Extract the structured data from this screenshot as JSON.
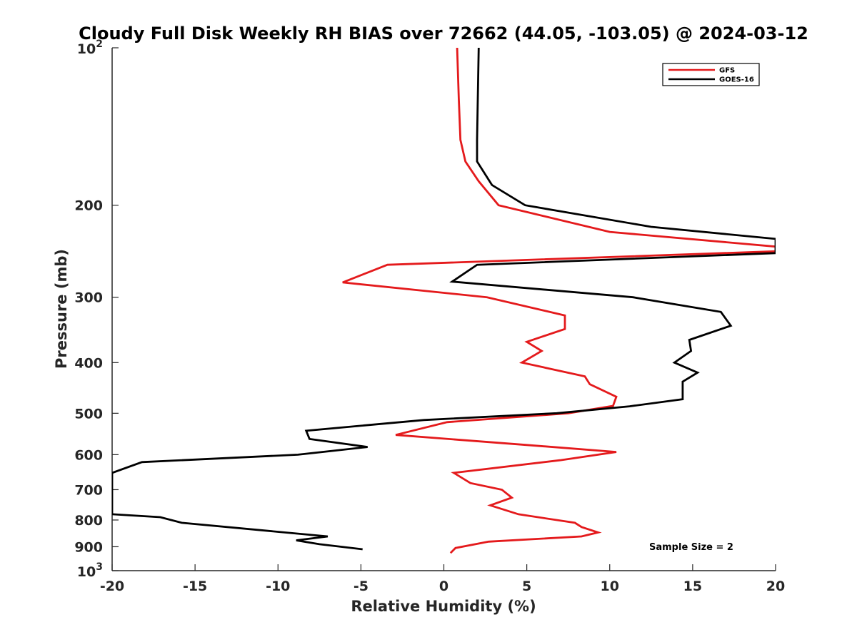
{
  "chart_data": {
    "type": "line",
    "title": "Cloudy Full Disk Weekly RH BIAS over 72662 (44.05, -103.05) @ 2024-03-12",
    "xlabel": "Relative Humidity (%)",
    "ylabel": "Pressure (mb)",
    "xlim": [
      -20,
      20
    ],
    "ylim": [
      100,
      1000
    ],
    "y_scale": "log",
    "y_reversed": true,
    "grid": false,
    "legend_position": "top-right",
    "x_ticks": [
      "-20",
      "-15",
      "-10",
      "-5",
      "0",
      "5",
      "10",
      "15",
      "20"
    ],
    "y_ticks": [
      {
        "value": 100,
        "base": "10",
        "exp": "2"
      },
      {
        "value": 200,
        "label": "200"
      },
      {
        "value": 300,
        "label": "300"
      },
      {
        "value": 400,
        "label": "400"
      },
      {
        "value": 500,
        "label": "500"
      },
      {
        "value": 600,
        "label": "600"
      },
      {
        "value": 700,
        "label": "700"
      },
      {
        "value": 800,
        "label": "800"
      },
      {
        "value": 900,
        "label": "900"
      },
      {
        "value": 1000,
        "base": "10",
        "exp": "3"
      }
    ],
    "annotation": "Sample Size = 2",
    "series": [
      {
        "name": "GFS",
        "color": "#e41a1c",
        "points": [
          [
            0.8,
            100
          ],
          [
            0.9,
            125
          ],
          [
            1.0,
            150
          ],
          [
            1.3,
            165
          ],
          [
            2.1,
            180
          ],
          [
            3.3,
            200
          ],
          [
            10.0,
            225
          ],
          [
            20.0,
            240
          ],
          [
            20.0,
            245
          ],
          [
            -3.4,
            260
          ],
          [
            -6.1,
            281
          ],
          [
            2.6,
            300
          ],
          [
            7.3,
            325
          ],
          [
            7.3,
            345
          ],
          [
            5.0,
            365
          ],
          [
            5.9,
            380
          ],
          [
            4.7,
            400
          ],
          [
            8.5,
            425
          ],
          [
            8.8,
            440
          ],
          [
            10.4,
            465
          ],
          [
            10.2,
            484
          ],
          [
            7.5,
            500
          ],
          [
            0.2,
            520
          ],
          [
            -2.9,
            550
          ],
          [
            5.0,
            575
          ],
          [
            10.4,
            593
          ],
          [
            7.0,
            615
          ],
          [
            0.6,
            650
          ],
          [
            1.6,
            680
          ],
          [
            3.5,
            700
          ],
          [
            4.1,
            725
          ],
          [
            2.8,
            750
          ],
          [
            4.5,
            780
          ],
          [
            7.9,
            810
          ],
          [
            8.3,
            825
          ],
          [
            9.3,
            845
          ],
          [
            8.3,
            860
          ],
          [
            2.7,
            880
          ],
          [
            0.7,
            905
          ],
          [
            0.4,
            925
          ]
        ]
      },
      {
        "name": "GOES-16",
        "color": "#000000",
        "points": [
          [
            2.1,
            100
          ],
          [
            2.0,
            150
          ],
          [
            2.0,
            165
          ],
          [
            2.9,
            183
          ],
          [
            4.9,
            200
          ],
          [
            12.5,
            220
          ],
          [
            20.0,
            232
          ],
          [
            20.0,
            247
          ],
          [
            2.0,
            260
          ],
          [
            0.5,
            280
          ],
          [
            11.4,
            300
          ],
          [
            16.7,
            320
          ],
          [
            17.3,
            340
          ],
          [
            14.8,
            362
          ],
          [
            14.9,
            380
          ],
          [
            13.9,
            400
          ],
          [
            15.3,
            418
          ],
          [
            14.4,
            435
          ],
          [
            14.4,
            470
          ],
          [
            11.2,
            485
          ],
          [
            6.8,
            500
          ],
          [
            -1.2,
            515
          ],
          [
            -8.3,
            540
          ],
          [
            -8.1,
            560
          ],
          [
            -4.6,
            580
          ],
          [
            -8.8,
            600
          ],
          [
            -18.2,
            620
          ],
          [
            -20.0,
            650
          ],
          [
            -20.0,
            780
          ],
          [
            -17.1,
            790
          ],
          [
            -15.8,
            810
          ],
          [
            -7.0,
            860
          ],
          [
            -8.9,
            875
          ],
          [
            -7.5,
            890
          ],
          [
            -4.9,
            910
          ]
        ]
      }
    ]
  }
}
